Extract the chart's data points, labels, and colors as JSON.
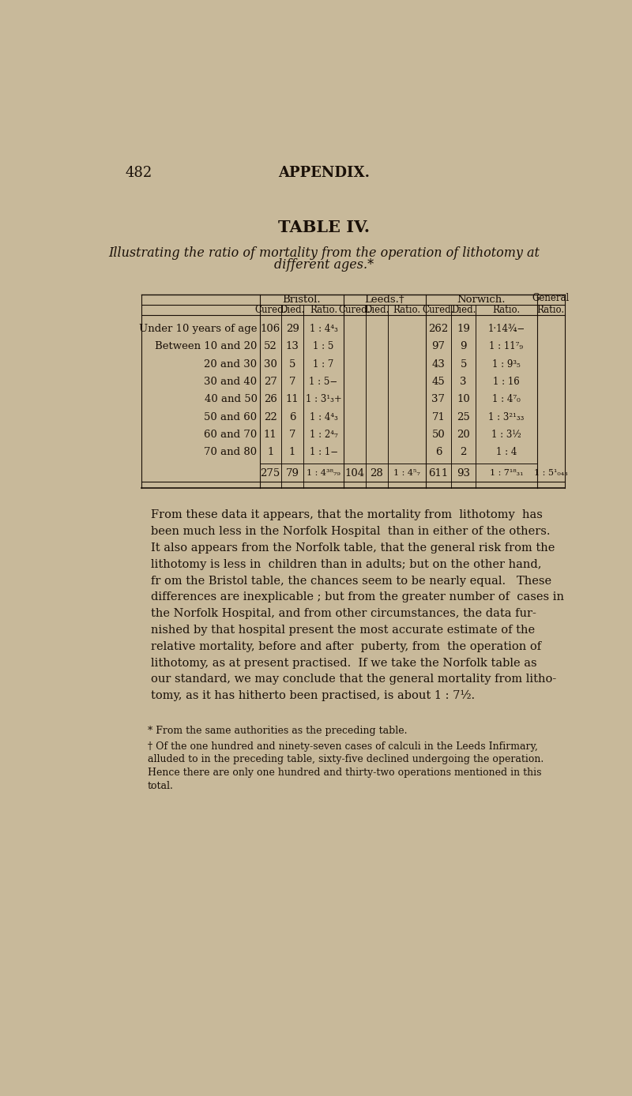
{
  "bg_color": "#c8b99a",
  "text_color": "#1a1008",
  "page_num": "482",
  "appendix": "APPENDIX.",
  "table_title": "TABLE IV.",
  "subtitle_line1": "Illustrating the ratio of mortality from the operation of lithotomy at",
  "subtitle_line2": "different ages.*",
  "row_labels": [
    "Under 10 years of age",
    "Between 10 and 20",
    "20 and 30",
    "30 and 40",
    "40 and 50",
    "50 and 60",
    "60 and 70",
    "70 and 80"
  ],
  "bristol_cured": [
    "106",
    "52",
    "30",
    "27",
    "26",
    "22",
    "11",
    "1"
  ],
  "bristol_died": [
    "29",
    "13",
    "5",
    "7",
    "11",
    "6",
    "7",
    "1"
  ],
  "bristol_ratio": [
    "1 : 4⁴₃",
    "1 : 5",
    "1 : 7",
    "1 : 5−",
    "1 : 3¹₃+",
    "1 : 4⁴₃",
    "1 : 2⁴₇",
    "1 : 1−"
  ],
  "norwich_cured": [
    "262",
    "97",
    "43",
    "45",
    "37",
    "71",
    "50",
    "6"
  ],
  "norwich_died": [
    "19",
    "9",
    "5",
    "3",
    "10",
    "25",
    "20",
    "2"
  ],
  "norwich_ratio": [
    "1·14¾−",
    "1 : 11⁷₉",
    "1 : 9³₅",
    "1 : 16",
    "1 : 4⁷₀",
    "1 : 3²¹₃₃",
    "1 : 3½",
    "1 : 4"
  ],
  "total_bristol_cured": "275",
  "total_bristol_died": "79",
  "total_bristol_ratio": "1 : 4³⁸₇₉",
  "total_leeds_cured": "104",
  "total_leeds_died": "28",
  "total_leeds_ratio": "1 : 4⁵₇",
  "total_norwich_cured": "611",
  "total_norwich_died": "93",
  "total_norwich_ratio": "1 : 7¹⁸₃₁",
  "total_general_ratio": "1 : 5¹₀₄₃",
  "body_text_lines": [
    "From these data it appears, that the mortality from  lithotomy  has",
    "been much less in the Norfolk Hospital  than in either of the others.",
    "It also appears from the Norfolk table, that the general risk from the",
    "lithotomy is less in  children than in adults; but on the other hand,",
    "fr om the Bristol table, the chances seem to be nearly equal.   These",
    "differences are inexplicable ; but from the greater number of  cases in",
    "the Norfolk Hospital, and from other circumstances, the data fur-",
    "nished by that hospital present the most accurate estimate of the",
    "relative mortality, before and after  puberty, from  the operation of",
    "lithotomy, as at present practised.  If we take the Norfolk table as",
    "our standard, we may conclude that the general mortality from litho-",
    "tomy, as it has hitherto been practised, is about 1 : 7½."
  ],
  "footnote1": "* From the same authorities as the preceding table.",
  "footnote2_lines": [
    "† Of the one hundred and ninety-seven cases of calculi in the Leeds Infirmary,",
    "alluded to in the preceding table, sixty-five declined undergoing the operation.",
    "Hence there are only one hundred and thirty-two operations mentioned in this",
    "total."
  ]
}
